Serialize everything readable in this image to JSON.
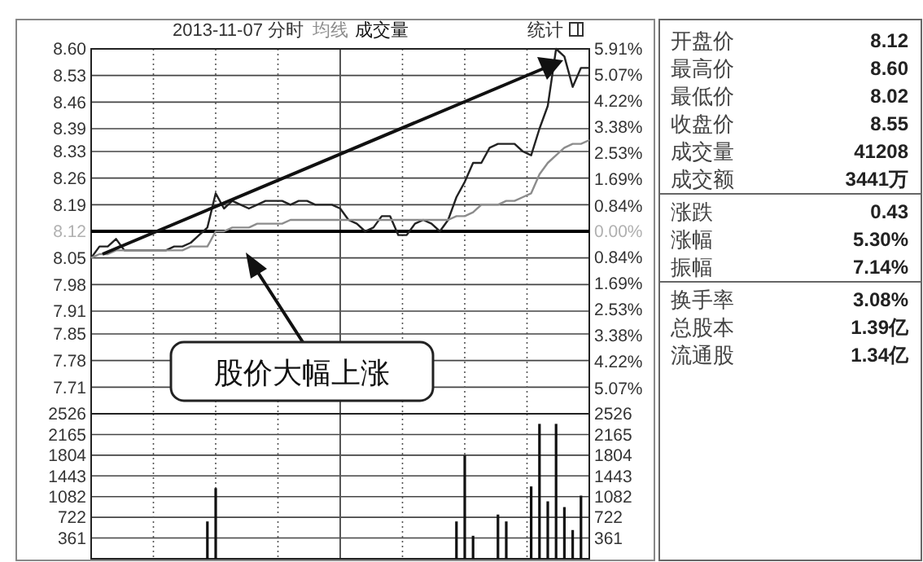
{
  "chart_data": [
    {
      "type": "line",
      "title": "2013-11-07 分时",
      "categories": [
        null,
        null,
        null,
        null,
        null,
        null,
        null,
        null,
        null,
        null,
        null,
        null,
        null,
        null,
        null,
        null,
        null,
        null,
        null,
        null,
        null,
        null,
        null,
        null,
        null,
        null,
        null,
        null,
        null,
        null,
        null,
        null,
        null,
        null,
        null,
        null,
        null,
        null,
        null,
        null,
        null,
        null,
        null,
        null,
        null,
        null,
        null,
        null,
        null,
        null,
        null,
        null,
        null,
        null,
        null,
        null,
        null,
        null,
        null,
        null,
        null
      ],
      "series": [
        {
          "color": "#222222",
          "values": [
            8.05,
            8.08,
            8.08,
            8.1,
            8.07,
            8.07,
            8.07,
            8.07,
            8.07,
            8.07,
            8.08,
            8.08,
            8.09,
            8.11,
            8.13,
            8.22,
            8.18,
            8.2,
            8.19,
            8.18,
            8.19,
            8.2,
            8.2,
            8.2,
            8.19,
            8.2,
            8.2,
            8.19,
            8.19,
            8.19,
            8.18,
            8.15,
            8.14,
            8.12,
            8.13,
            8.16,
            8.16,
            8.11,
            8.11,
            8.14,
            8.15,
            8.14,
            8.12,
            8.15,
            8.21,
            8.25,
            8.3,
            8.3,
            8.34,
            8.35,
            8.35,
            8.35,
            8.33,
            8.32,
            8.39,
            8.45,
            8.6,
            8.58,
            8.5,
            8.55,
            8.55
          ]
        },
        {
          "name": "均线",
          "color": "#8c8c8c",
          "values": [
            8.05,
            8.06,
            8.06,
            8.07,
            8.07,
            8.07,
            8.07,
            8.07,
            8.07,
            8.07,
            8.07,
            8.07,
            8.08,
            8.08,
            8.08,
            8.12,
            8.12,
            8.13,
            8.13,
            8.13,
            8.14,
            8.14,
            8.14,
            8.14,
            8.15,
            8.15,
            8.15,
            8.15,
            8.15,
            8.15,
            8.15,
            8.15,
            8.15,
            8.15,
            8.15,
            8.15,
            8.15,
            8.15,
            8.15,
            8.15,
            8.15,
            8.15,
            8.15,
            8.15,
            8.16,
            8.16,
            8.17,
            8.19,
            8.19,
            8.19,
            8.2,
            8.2,
            8.21,
            8.22,
            8.27,
            8.3,
            8.32,
            8.34,
            8.35,
            8.35,
            8.36
          ]
        }
      ],
      "ylim": [
        7.64,
        8.6
      ],
      "yticks": [
        {
          "value": 8.6,
          "label": "8.60"
        },
        {
          "value": 8.53,
          "label": "8.53"
        },
        {
          "value": 8.46,
          "label": "8.46"
        },
        {
          "value": 8.39,
          "label": "8.39"
        },
        {
          "value": 8.33,
          "label": "8.33"
        },
        {
          "value": 8.26,
          "label": "8.26"
        },
        {
          "value": 8.19,
          "label": "8.19"
        },
        {
          "value": 8.12,
          "label": "8.12"
        },
        {
          "value": 8.05,
          "label": "8.05"
        },
        {
          "value": 7.98,
          "label": "7.98"
        },
        {
          "value": 7.91,
          "label": "7.91"
        },
        {
          "value": 7.85,
          "label": "7.85"
        },
        {
          "value": 7.78,
          "label": "7.78"
        },
        {
          "value": 7.71,
          "label": "7.71"
        }
      ],
      "y2lim": [
        -5.91,
        5.91
      ],
      "y2ticks": [
        {
          "value": 5.91,
          "label": "5.91%"
        },
        {
          "value": 5.07,
          "label": "5.07%"
        },
        {
          "value": 4.22,
          "label": "4.22%"
        },
        {
          "value": 3.38,
          "label": "3.38%"
        },
        {
          "value": 2.53,
          "label": "2.53%"
        },
        {
          "value": 1.69,
          "label": "1.69%"
        },
        {
          "value": 0.84,
          "label": "0.84%"
        },
        {
          "value": 0,
          "label": "0.00%"
        },
        {
          "value": -0.84,
          "label": "0.84%"
        },
        {
          "value": -1.69,
          "label": "1.69%"
        },
        {
          "value": -2.53,
          "label": "2.53%"
        },
        {
          "value": -3.38,
          "label": "3.38%"
        },
        {
          "value": -4.22,
          "label": "4.22%"
        },
        {
          "value": -5.07,
          "label": "5.07%"
        }
      ],
      "ref_lines": [
        {
          "axis": "y",
          "value": 8.12
        }
      ],
      "grid": true,
      "legend": "top left",
      "tick_labels": "y",
      "marker": "none",
      "line_style": "solid",
      "annotations": [
        "统计",
        "股价大幅上涨"
      ]
    },
    {
      "type": "bar",
      "categories": [
        null,
        null,
        null,
        null,
        null,
        null,
        null,
        null,
        null,
        null,
        null,
        null,
        null,
        null,
        null,
        null,
        null,
        null,
        null,
        null,
        null,
        null,
        null,
        null,
        null,
        null,
        null,
        null,
        null,
        null,
        null,
        null,
        null,
        null,
        null,
        null,
        null,
        null,
        null,
        null,
        null,
        null,
        null,
        null,
        null,
        null,
        null,
        null,
        null,
        null,
        null,
        null,
        null,
        null,
        null,
        null,
        null,
        null,
        null,
        null,
        null
      ],
      "series": [
        {
          "name": "成交量",
          "color": "#111111",
          "values": [
            null,
            null,
            null,
            null,
            null,
            null,
            null,
            null,
            null,
            null,
            null,
            null,
            null,
            null,
            650,
            1230,
            null,
            null,
            null,
            null,
            null,
            null,
            null,
            null,
            null,
            null,
            null,
            null,
            null,
            null,
            null,
            null,
            null,
            null,
            null,
            null,
            null,
            null,
            null,
            null,
            null,
            null,
            null,
            null,
            650,
            1800,
            400,
            null,
            null,
            770,
            650,
            null,
            null,
            1260,
            2350,
            1000,
            2350,
            900,
            500,
            1100,
            null
          ]
        }
      ],
      "ylim": [
        0,
        2526
      ],
      "yticks": [
        2526,
        2165,
        1804,
        1443,
        1082,
        722,
        361
      ],
      "y2lim": [
        0,
        2526
      ],
      "y2ticks": [
        2526,
        2165,
        1804,
        1443,
        1082,
        722,
        361
      ],
      "grid": true,
      "legend": "top",
      "tick_labels": "y"
    },
    {
      "type": "other",
      "annotations": [
        "开盘价",
        "8.12",
        "最高价",
        "8.60",
        "最低价",
        "8.02",
        "收盘价",
        "8.55",
        "成交量",
        "41208",
        "成交额",
        "3441万",
        "涨跌",
        "0.43",
        "涨幅",
        "5.30%",
        "振幅",
        "7.14%",
        "换手率",
        "3.08%",
        "总股本",
        "1.39亿",
        "流通股",
        "1.34亿"
      ]
    }
  ]
}
